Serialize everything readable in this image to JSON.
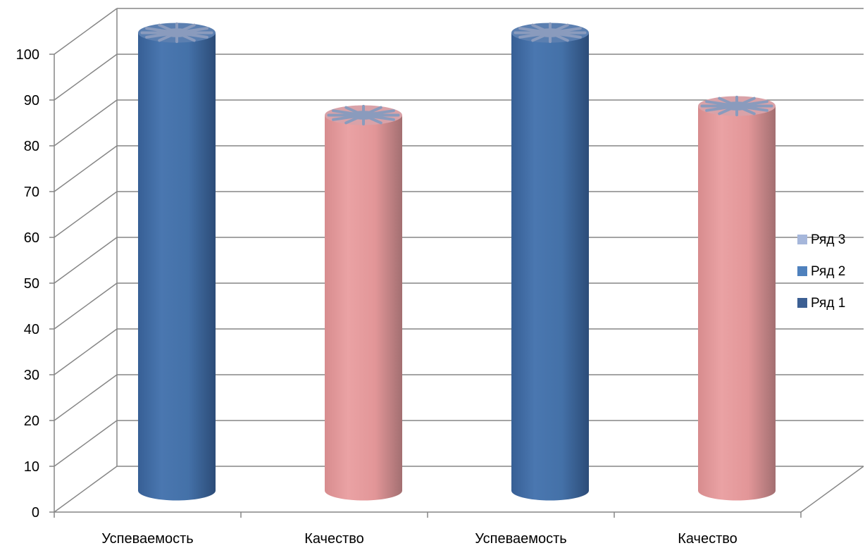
{
  "chart_data": {
    "type": "bar",
    "style": "3d-cylinder",
    "categories": [
      "Успеваемость",
      "Качество",
      "Успеваемость",
      "Качество"
    ],
    "values": [
      100,
      82,
      100,
      84
    ],
    "bar_colors": [
      "#4472a8",
      "#e6999b",
      "#4472a8",
      "#e6999b"
    ],
    "title": "",
    "xlabel": "",
    "ylabel": "",
    "ylim": [
      0,
      100
    ],
    "yticks": [
      0,
      10,
      20,
      30,
      40,
      50,
      60,
      70,
      80,
      90,
      100
    ],
    "grid": true,
    "legend": {
      "position": "right",
      "entries": [
        {
          "label": "Ряд 3",
          "color": "#a6b7db"
        },
        {
          "label": "Ряд 2",
          "color": "#4f81bd"
        },
        {
          "label": "Ряд 1",
          "color": "#3c5f93"
        }
      ]
    }
  }
}
